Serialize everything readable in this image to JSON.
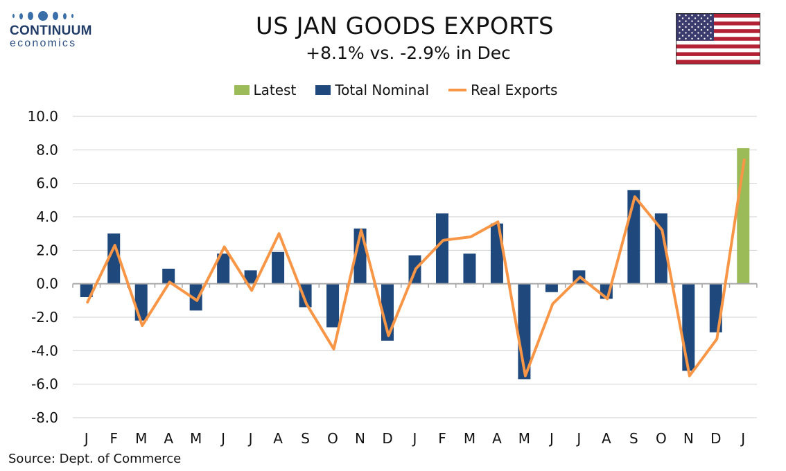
{
  "logo": {
    "name": "CONTINUUM",
    "sub": "economics"
  },
  "flag": {
    "name": "us-flag"
  },
  "colors": {
    "latest": "#9bbb59",
    "nominal": "#1f497d",
    "real": "#f79646",
    "grid": "#cfcfcf",
    "logo": "#3a6fa8"
  },
  "chart_data": {
    "type": "bar",
    "title": "US JAN GOODS EXPORTS",
    "subtitle": "+8.1% vs. -2.9% in Dec",
    "xlabel": "",
    "ylabel": "",
    "ylim": [
      -8,
      10
    ],
    "yticks": [
      10,
      8,
      6,
      4,
      2,
      0,
      -2,
      -4,
      -6,
      -8
    ],
    "ytick_labels": [
      "10.0",
      "8.0",
      "6.0",
      "4.0",
      "2.0",
      "0.0",
      "-2.0",
      "-4.0",
      "-6.0",
      "-8.0"
    ],
    "grid": true,
    "legend_position": "top-center",
    "categories": [
      "J",
      "F",
      "M",
      "A",
      "M",
      "J",
      "J",
      "A",
      "S",
      "O",
      "N",
      "D",
      "J",
      "F",
      "M",
      "A",
      "M",
      "J",
      "J",
      "A",
      "S",
      "O",
      "N",
      "D",
      "J"
    ],
    "series": [
      {
        "name": "Latest",
        "kind": "bar",
        "color": "#9bbb59",
        "values": [
          null,
          null,
          null,
          null,
          null,
          null,
          null,
          null,
          null,
          null,
          null,
          null,
          null,
          null,
          null,
          null,
          null,
          null,
          null,
          null,
          null,
          null,
          null,
          null,
          8.1
        ]
      },
      {
        "name": "Total Nominal",
        "kind": "bar",
        "color": "#1f497d",
        "values": [
          -0.8,
          3.0,
          -2.2,
          0.9,
          -1.6,
          1.8,
          0.8,
          1.9,
          -1.4,
          -2.6,
          3.3,
          -3.4,
          1.7,
          4.2,
          1.8,
          3.6,
          -5.7,
          -0.5,
          0.8,
          -0.9,
          5.6,
          4.2,
          -5.2,
          -2.9,
          null
        ]
      },
      {
        "name": "Real Exports",
        "kind": "line",
        "color": "#f79646",
        "values": [
          -1.1,
          2.3,
          -2.5,
          0.1,
          -1.0,
          2.2,
          -0.4,
          3.0,
          -1.2,
          -3.9,
          3.2,
          -3.1,
          0.9,
          2.6,
          2.8,
          3.7,
          -5.5,
          -1.2,
          0.4,
          -0.9,
          5.2,
          3.2,
          -5.5,
          -3.3,
          7.4
        ]
      }
    ]
  },
  "source": "Source: Dept. of Commerce"
}
